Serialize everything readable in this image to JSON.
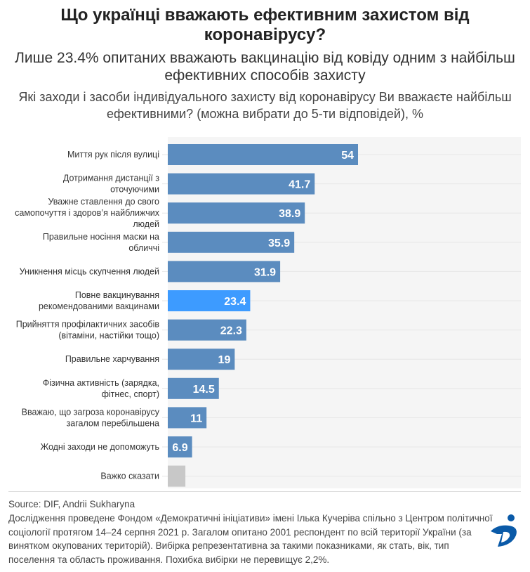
{
  "title": "Що українці вважають ефективним захистом від коронавірусу?",
  "subtitle": "Лише 23.4% опитаних вважають вакцинацію від ковіду одним з найбільш ефективних способів захисту",
  "question": "Які заходи і засоби індивідуального захисту від коронавірусу Ви вважаєте найбільш ефективними? (можна вибрати до 5-ти відповідей), %",
  "source": "Source: DIF, Andrii Sukharyna",
  "note": "Дослідження проведене Фондом «Демократичні ініціативи» імені Ілька Кучеріва спільно з Центром політичної соціології протягом 14–24 серпня 2021 р. Загалом опитано 2001 респондент по всій території України (за винятком окупованих територій). Вибірка репрезентативна за такими показниками, як стать, вік, тип поселення та область проживання. Похибка вибірки не перевищує 2,2%.",
  "colors": {
    "bar": "#5b8cbf",
    "highlight": "#3d9bff",
    "neutral": "#c8c8c8",
    "plot_bg": "#f5f5f5",
    "logo": "#0a5aa8"
  },
  "chart_data": {
    "type": "bar",
    "orientation": "horizontal",
    "categories": [
      [
        "Миття рук після вулиці"
      ],
      [
        "Дотримання дистанції з",
        "оточуючими"
      ],
      [
        "Уважне ставлення до свого",
        "самопочуття і здоров’я найближчих",
        "людей"
      ],
      [
        "Правильне носіння маски на",
        "обличчі"
      ],
      [
        "Уникнення місць скупчення людей"
      ],
      [
        "Повне вакцинування",
        "рекомендованими вакцинами"
      ],
      [
        "Прийняття профілактичних засобів",
        "(вітаміни, настійки тощо)"
      ],
      [
        "Правильне харчування"
      ],
      [
        "Фізична активність (зарядка,",
        "фітнес, спорт)"
      ],
      [
        "Вважаю, що загроза коронавірусу",
        "загалом перебільшена"
      ],
      [
        "Жодні заходи не допоможуть"
      ],
      [
        "Важко сказати"
      ]
    ],
    "values": [
      54,
      41.7,
      38.9,
      35.9,
      31.9,
      23.4,
      22.3,
      19,
      14.5,
      11,
      6.9,
      5
    ],
    "labels": [
      "54",
      "41.7",
      "38.9",
      "35.9",
      "31.9",
      "23.4",
      "22.3",
      "19",
      "14.5",
      "11",
      "6.9",
      ""
    ],
    "highlight_index": 5,
    "neutral_index": 11,
    "xlim": [
      0,
      100
    ],
    "grid": false
  }
}
